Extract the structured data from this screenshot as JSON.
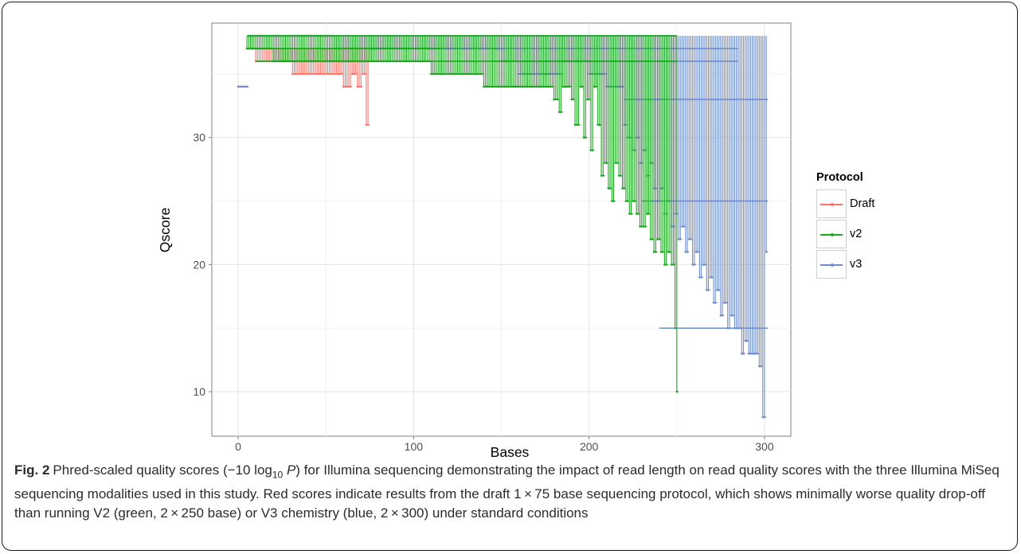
{
  "chart_data": {
    "type": "line",
    "title": "",
    "xlabel": "Bases",
    "ylabel": "Qscore",
    "xlim": [
      -15,
      315
    ],
    "ylim": [
      6.5,
      39
    ],
    "x_ticks": [
      0,
      100,
      200,
      300
    ],
    "y_ticks": [
      10,
      20,
      30
    ],
    "x_tick_labels": [
      "0",
      "100",
      "200",
      "300"
    ],
    "y_tick_labels": [
      "10",
      "20",
      "30"
    ],
    "grid": true,
    "legend": {
      "title": "Protocol",
      "position": "right"
    },
    "series": [
      {
        "name": "Draft",
        "color": "#F8766D",
        "min_segments": [
          [
            10,
            76,
            36
          ],
          [
            20,
            31,
            36
          ],
          [
            31,
            60,
            35
          ],
          [
            60,
            65,
            34
          ],
          [
            65,
            68,
            35
          ],
          [
            68,
            71,
            34
          ],
          [
            71,
            73,
            35
          ],
          [
            73,
            75,
            31
          ]
        ],
        "upper_lines": [
          [
            5,
            75,
            37
          ],
          [
            10,
            75,
            36
          ]
        ]
      },
      {
        "name": "v2",
        "color": "#1BA81E",
        "min_segments": [
          [
            5,
            20,
            37
          ],
          [
            20,
            45,
            36
          ],
          [
            45,
            110,
            36
          ],
          [
            110,
            120,
            35
          ],
          [
            120,
            140,
            35
          ],
          [
            140,
            180,
            34
          ],
          [
            180,
            183,
            33
          ],
          [
            183,
            185,
            32
          ],
          [
            185,
            190,
            34
          ],
          [
            190,
            192,
            33
          ],
          [
            192,
            195,
            31
          ],
          [
            195,
            197,
            34
          ],
          [
            197,
            199,
            30
          ],
          [
            199,
            201,
            33
          ],
          [
            201,
            203,
            29
          ],
          [
            203,
            205,
            34
          ],
          [
            205,
            207,
            31
          ],
          [
            207,
            209,
            27
          ],
          [
            209,
            211,
            28
          ],
          [
            211,
            213,
            26
          ],
          [
            213,
            215,
            25
          ],
          [
            215,
            217,
            28
          ],
          [
            217,
            219,
            27
          ],
          [
            219,
            221,
            26
          ],
          [
            221,
            223,
            25
          ],
          [
            223,
            225,
            24
          ],
          [
            225,
            227,
            25
          ],
          [
            227,
            229,
            24
          ],
          [
            229,
            231,
            23
          ],
          [
            231,
            233,
            23
          ],
          [
            233,
            235,
            24
          ],
          [
            235,
            237,
            22
          ],
          [
            237,
            239,
            21
          ],
          [
            239,
            241,
            22
          ],
          [
            241,
            243,
            21
          ],
          [
            243,
            245,
            20
          ],
          [
            245,
            247,
            21
          ],
          [
            247,
            249,
            20
          ],
          [
            249,
            250,
            15
          ],
          [
            250,
            251,
            10
          ]
        ],
        "upper_lines": [
          [
            5,
            250,
            38
          ],
          [
            5,
            115,
            37
          ],
          [
            10,
            250,
            36
          ]
        ]
      },
      {
        "name": "v3",
        "color": "#6E8DCB",
        "min_segments": [
          [
            0,
            6,
            34
          ],
          [
            6,
            55,
            38
          ],
          [
            55,
            150,
            37
          ],
          [
            150,
            160,
            36
          ],
          [
            160,
            175,
            35
          ],
          [
            175,
            185,
            35
          ],
          [
            185,
            200,
            36
          ],
          [
            200,
            210,
            35
          ],
          [
            210,
            220,
            34
          ],
          [
            220,
            222,
            31
          ],
          [
            222,
            225,
            30
          ],
          [
            225,
            227,
            29
          ],
          [
            227,
            229,
            30
          ],
          [
            229,
            231,
            28
          ],
          [
            231,
            233,
            29
          ],
          [
            233,
            235,
            27
          ],
          [
            235,
            237,
            28
          ],
          [
            237,
            239,
            26
          ],
          [
            239,
            241,
            25
          ],
          [
            241,
            243,
            26
          ],
          [
            243,
            245,
            24
          ],
          [
            245,
            247,
            25
          ],
          [
            247,
            249,
            23
          ],
          [
            249,
            251,
            24
          ],
          [
            251,
            253,
            22
          ],
          [
            253,
            255,
            23
          ],
          [
            255,
            257,
            21
          ],
          [
            257,
            259,
            22
          ],
          [
            259,
            261,
            20
          ],
          [
            261,
            263,
            21
          ],
          [
            263,
            265,
            19
          ],
          [
            265,
            267,
            20
          ],
          [
            267,
            269,
            18
          ],
          [
            269,
            271,
            19
          ],
          [
            271,
            273,
            17
          ],
          [
            273,
            275,
            18
          ],
          [
            275,
            277,
            16
          ],
          [
            277,
            279,
            17
          ],
          [
            279,
            281,
            15
          ],
          [
            281,
            283,
            16
          ],
          [
            283,
            285,
            15
          ],
          [
            285,
            287,
            15
          ],
          [
            287,
            289,
            13
          ],
          [
            289,
            291,
            14
          ],
          [
            291,
            293,
            13
          ],
          [
            293,
            295,
            13
          ],
          [
            295,
            297,
            13
          ],
          [
            297,
            299,
            12
          ],
          [
            299,
            301,
            8
          ],
          [
            301,
            302,
            21
          ]
        ],
        "upper_lines": [
          [
            6,
            250,
            38
          ],
          [
            55,
            285,
            37
          ],
          [
            150,
            285,
            36
          ],
          [
            220,
            302,
            33
          ],
          [
            230,
            302,
            25
          ],
          [
            240,
            302,
            15
          ]
        ]
      }
    ]
  },
  "caption": {
    "label": "Fig. 2",
    "text_1": "Phred-scaled quality scores (−10 log",
    "subscript": "10",
    "italic_p": "P",
    "text_2": ") for Illumina sequencing demonstrating the impact of read length on read quality scores with the three Illumina MiSeq sequencing modalities used in this study. Red scores indicate results from the draft 1 × 75 base sequencing protocol, which shows minimally worse quality drop-off than running V2 (green, 2 × 250 base) or V3 chemistry (blue, 2 × 300) under standard conditions"
  }
}
